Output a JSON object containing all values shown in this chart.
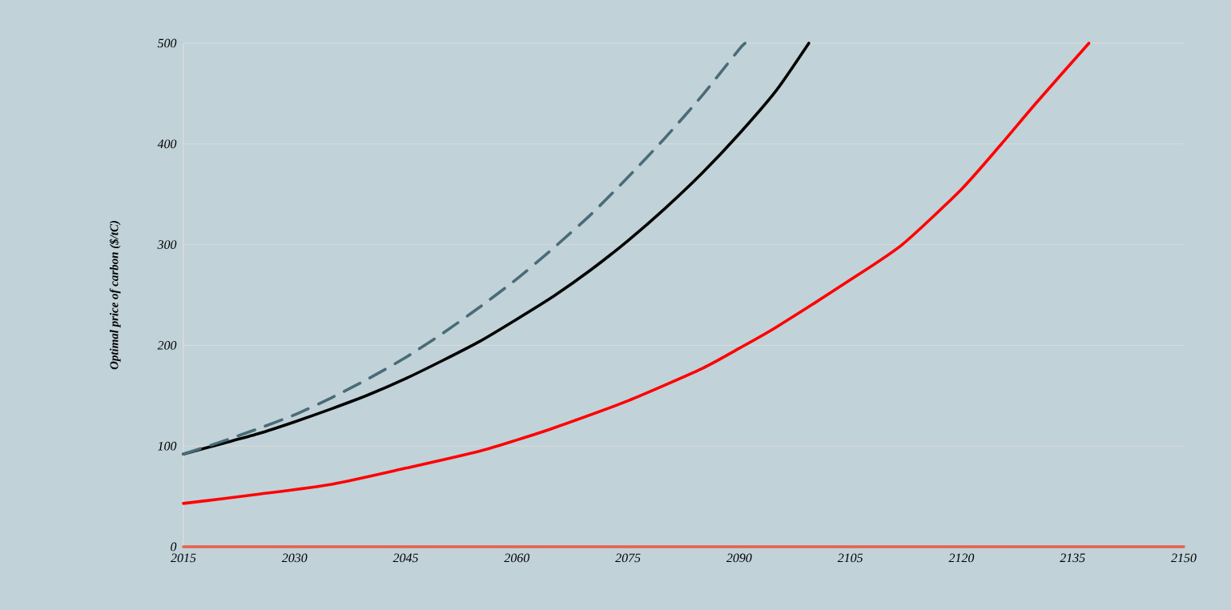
{
  "chart_data": {
    "type": "line",
    "ylabel": "Optimal price of carbon ($/tC)",
    "xlim": [
      2015,
      2150
    ],
    "ylim": [
      0,
      500
    ],
    "xticks": [
      2015,
      2030,
      2045,
      2060,
      2075,
      2090,
      2105,
      2120,
      2135,
      2150
    ],
    "yticks": [
      0,
      100,
      200,
      300,
      400,
      500
    ],
    "grid": "y",
    "marker": "none",
    "series": [
      {
        "color": "#e8604a",
        "line_style": "solid",
        "x": [
          2015,
          2150
        ],
        "values": [
          0,
          0
        ]
      },
      {
        "color": "#ff0000",
        "line_style": "solid",
        "x": [
          2015,
          2025,
          2035,
          2045,
          2055,
          2060,
          2065,
          2075,
          2085,
          2090,
          2095,
          2105,
          2112,
          2120,
          2125.4,
          2130,
          2137.2
        ],
        "values": [
          43,
          52,
          62,
          78,
          95,
          106,
          118,
          145,
          177,
          197,
          218,
          265,
          300,
          355,
          400,
          440,
          500
        ]
      },
      {
        "color": "#000000",
        "line_style": "solid",
        "x": [
          2015,
          2020,
          2025,
          2030,
          2035,
          2040,
          2045,
          2050,
          2055,
          2060,
          2065,
          2070,
          2075,
          2080,
          2085,
          2090,
          2095,
          2099.4
        ],
        "values": [
          92,
          102,
          112,
          124,
          137,
          151,
          167,
          185,
          204,
          226,
          249,
          275,
          304,
          336,
          371,
          410,
          453,
          500
        ]
      },
      {
        "color": "#4a6b78",
        "line_style": "dashed",
        "x": [
          2015,
          2020,
          2025,
          2030,
          2035,
          2040,
          2045,
          2050,
          2055,
          2060,
          2065,
          2070,
          2075,
          2080,
          2085,
          2090,
          2090.8
        ],
        "values": [
          92,
          104,
          117,
          131,
          148,
          167,
          188,
          212,
          238,
          266,
          297,
          330,
          367,
          406,
          448,
          494,
          500
        ]
      }
    ]
  }
}
